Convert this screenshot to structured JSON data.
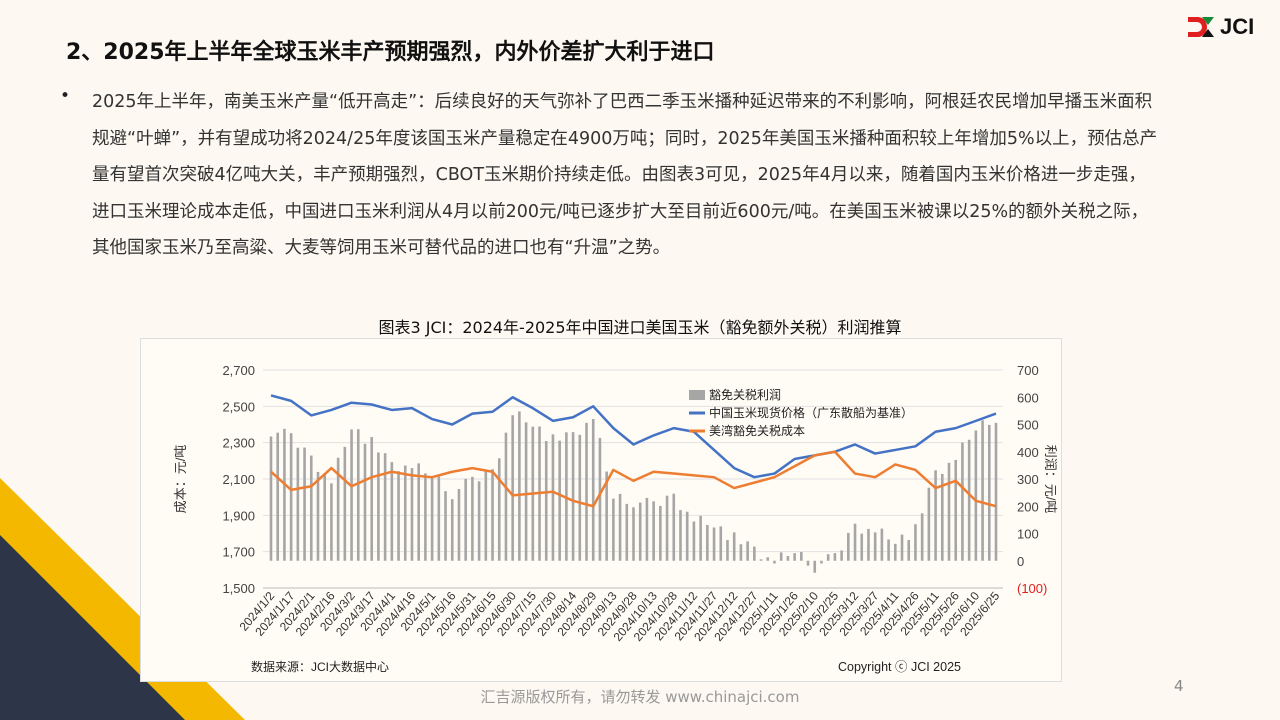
{
  "header": {
    "title": "2、2025年上半年全球玉米丰产预期强烈，内外价差扩大利于进口",
    "logo_text": "JCI"
  },
  "body": {
    "bullet": "•",
    "paragraph": "2025年上半年，南美玉米产量“低开高走”：后续良好的天气弥补了巴西二季玉米播种延迟带来的不利影响，阿根廷农民增加早播玉米面积规避“叶蝉”，并有望成功将2024/25年度该国玉米产量稳定在4900万吨；同时，2025年美国玉米播种面积较上年增加5%以上，预估总产量有望首次突破4亿吨大关，丰产预期强烈，CBOT玉米期价持续走低。由图表3可见，2025年4月以来，随着国内玉米价格进一步走强，进口玉米理论成本走低，中国进口玉米利润从4月以前200元/吨已逐步扩大至目前近600元/吨。在美国玉米被课以25%的额外关税之际，其他国家玉米乃至高粱、大麦等饲用玉米可替代品的进口也有“升温”之势。"
  },
  "chart_data": {
    "type": "bar+line",
    "title": "图表3   JCI：2024年-2025年中国进口美国玉米（豁免额外关税）利润推算",
    "ylabel": "成本：元/吨",
    "y2label": "利润：元/吨",
    "ylim": [
      1500,
      2700
    ],
    "y2lim": [
      -100,
      700
    ],
    "yticks": [
      "2,700",
      "2,500",
      "2,300",
      "2,100",
      "1,900",
      "1,700",
      "1,500"
    ],
    "y2ticks": [
      "700",
      "600",
      "500",
      "400",
      "300",
      "200",
      "100",
      "0",
      "(100)"
    ],
    "categories": [
      "2024/1/2",
      "2024/1/17",
      "2024/2/1",
      "2024/2/16",
      "2024/3/2",
      "2024/3/17",
      "2024/4/1",
      "2024/4/16",
      "2024/5/1",
      "2024/5/16",
      "2024/5/31",
      "2024/6/15",
      "2024/6/30",
      "2024/7/15",
      "2024/7/30",
      "2024/8/14",
      "2024/8/29",
      "2024/9/13",
      "2024/9/28",
      "2024/10/13",
      "2024/10/28",
      "2024/11/12",
      "2024/11/27",
      "2024/12/12",
      "2024/12/27",
      "2025/1/11",
      "2025/1/26",
      "2025/2/10",
      "2025/2/25",
      "2025/3/12",
      "2025/3/27",
      "2025/4/11",
      "2025/4/26",
      "2025/5/11",
      "2025/5/26",
      "2025/6/10",
      "2025/6/25"
    ],
    "series": [
      {
        "name": "豁免关税利润",
        "axis": "right",
        "type": "bar",
        "color": "#a6a6a6",
        "values": [
          480,
          450,
          380,
          290,
          500,
          430,
          350,
          340,
          320,
          250,
          290,
          330,
          540,
          510,
          440,
          460,
          520,
          240,
          220,
          200,
          240,
          150,
          140,
          80,
          40,
          -10,
          40,
          -20,
          10,
          130,
          110,
          80,
          110,
          320,
          370,
          490,
          530
        ]
      },
      {
        "name": "中国玉米现货价格（广东散船为基准）",
        "axis": "left",
        "type": "line",
        "color": "#4472c4",
        "values": [
          2560,
          2530,
          2450,
          2480,
          2520,
          2510,
          2480,
          2490,
          2430,
          2400,
          2460,
          2470,
          2550,
          2490,
          2420,
          2440,
          2500,
          2380,
          2290,
          2340,
          2380,
          2360,
          2260,
          2160,
          2110,
          2130,
          2210,
          2230,
          2250,
          2290,
          2240,
          2260,
          2280,
          2360,
          2380,
          2420,
          2460
        ]
      },
      {
        "name": "美湾豁免关税成本",
        "axis": "left",
        "type": "line",
        "color": "#ed7d31",
        "values": [
          2140,
          2040,
          2060,
          2160,
          2060,
          2110,
          2140,
          2120,
          2110,
          2140,
          2160,
          2140,
          2010,
          2020,
          2030,
          1980,
          1950,
          2150,
          2090,
          2140,
          2130,
          2120,
          2110,
          2050,
          2080,
          2110,
          2170,
          2230,
          2250,
          2130,
          2110,
          2180,
          2150,
          2050,
          2090,
          1980,
          1950
        ]
      }
    ],
    "legend_position": "top-center",
    "source": "数据来源：JCI大数据中心",
    "copyright": "Copyright ⓒ JCI 2025"
  },
  "footer": {
    "text": "汇吉源版权所有，请勿转发 www.chinajci.com",
    "page": "4"
  }
}
